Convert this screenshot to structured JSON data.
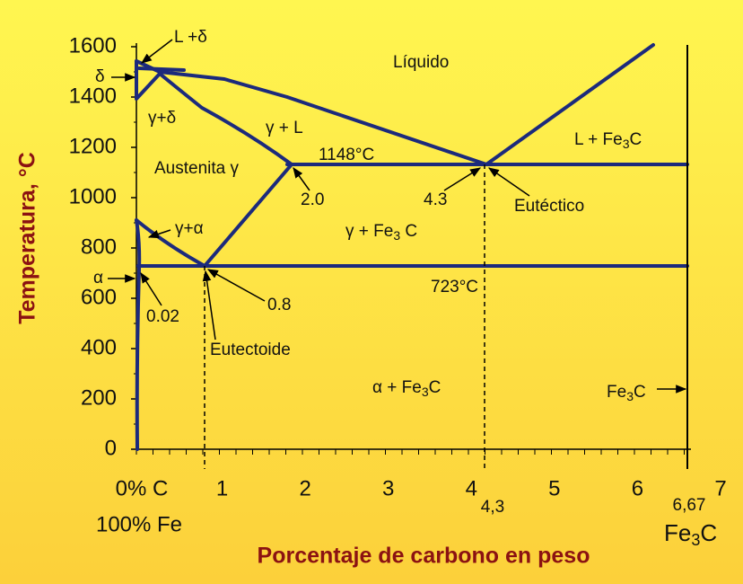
{
  "y_axis_title": "Temperatura, °C",
  "x_axis_title": "Porcentaje de carbono en peso",
  "y_ticks": [
    "0",
    "200",
    "400",
    "600",
    "800",
    "1000",
    "1200",
    "1400",
    "1600"
  ],
  "x_ticks": [
    "0% C",
    "1",
    "2",
    "3",
    "4",
    "5",
    "6",
    "7"
  ],
  "x_sub": "100% Fe",
  "bottom_marks": {
    "eutectic": "4,3",
    "cementite": "6,67",
    "cementite_name": [
      "Fe",
      "3",
      "C"
    ]
  },
  "labels": {
    "l_delta": "L +δ",
    "delta": "δ",
    "gamma_delta": "γ+δ",
    "gamma_l": "γ + L",
    "liquid": "Líquido",
    "l_fe3c": [
      "L + Fe",
      "3",
      "C"
    ],
    "t1148": "1148°C",
    "austenite": "Austenita γ",
    "c20": "2.0",
    "c43": "4.3",
    "eutectic": "Eutéctico",
    "gamma_alpha": "γ+α",
    "gamma_fe3c": [
      "γ + Fe",
      "3",
      " C"
    ],
    "alpha": "α",
    "t723": "723°C",
    "c08": "0.8",
    "c002": "0.02",
    "eutectoid": "Eutectoide",
    "alpha_fe3c": [
      "α + Fe",
      "3",
      "C"
    ],
    "fe3c": [
      "Fe",
      "3",
      "C"
    ]
  }
}
